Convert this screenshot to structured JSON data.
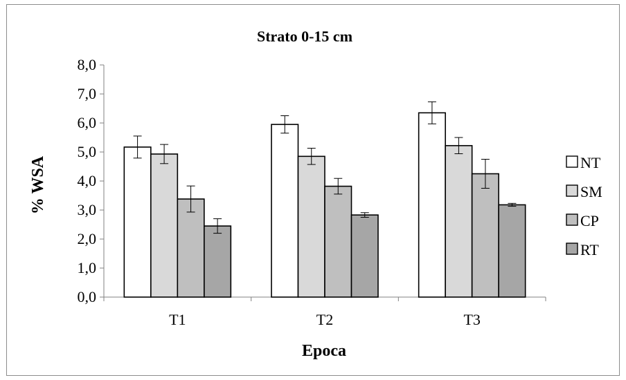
{
  "chart_data": {
    "type": "bar",
    "title": "Strato 0-15 cm",
    "xlabel": "Epoca",
    "ylabel": "% WSA",
    "categories": [
      "T1",
      "T2",
      "T3"
    ],
    "ylim": [
      0,
      8
    ],
    "yticks": [
      "0,0",
      "1,0",
      "2,0",
      "3,0",
      "4,0",
      "5,0",
      "6,0",
      "7,0",
      "8,0"
    ],
    "ytick_values": [
      0,
      1,
      2,
      3,
      4,
      5,
      6,
      7,
      8
    ],
    "grid": false,
    "legend_position": "right",
    "error_bars": true,
    "series": [
      {
        "name": "NT",
        "color": "#ffffff",
        "values": [
          5.17,
          5.95,
          6.35
        ],
        "errors": [
          0.38,
          0.3,
          0.38
        ]
      },
      {
        "name": "SM",
        "color": "#d9d9d9",
        "values": [
          4.93,
          4.85,
          5.22
        ],
        "errors": [
          0.33,
          0.28,
          0.28
        ]
      },
      {
        "name": "CP",
        "color": "#bfbfbf",
        "values": [
          3.38,
          3.82,
          4.25
        ],
        "errors": [
          0.45,
          0.27,
          0.5
        ]
      },
      {
        "name": "RT",
        "color": "#a6a6a6",
        "values": [
          2.45,
          2.83,
          3.18
        ],
        "errors": [
          0.25,
          0.08,
          0.05
        ]
      }
    ]
  }
}
